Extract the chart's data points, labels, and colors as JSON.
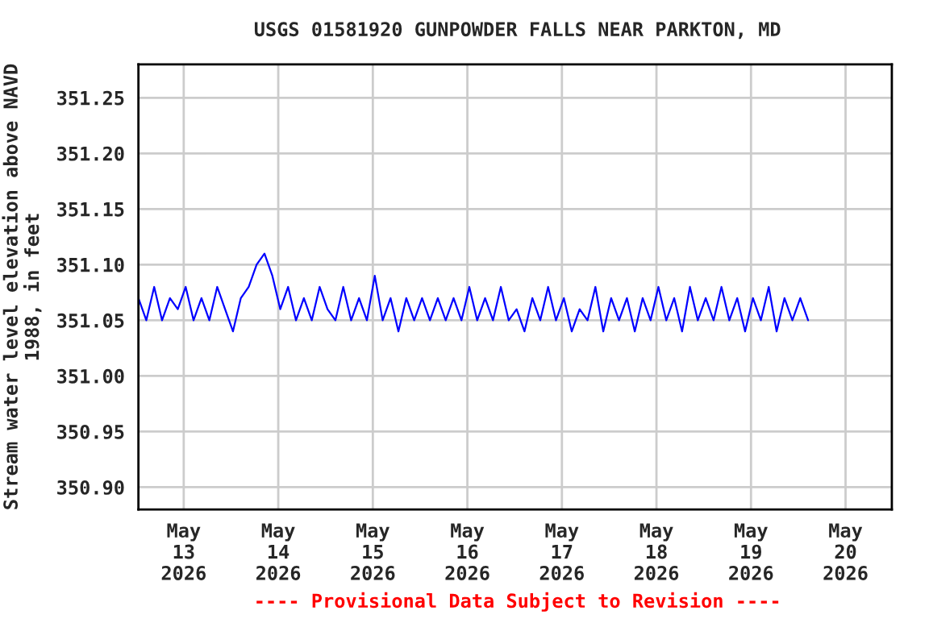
{
  "chart_data": {
    "type": "line",
    "title": "USGS 01581920 GUNPOWDER FALLS NEAR PARKTON, MD",
    "ylabel": "Stream water level elevation above NAVD\n1988, in feet",
    "annotations": [
      "---- Provisional Data Subject to Revision ----"
    ],
    "x": [
      "2026-05-12T12:30",
      "2026-05-12T14:30",
      "2026-05-12T16:30",
      "2026-05-12T18:30",
      "2026-05-12T20:30",
      "2026-05-12T22:30",
      "2026-05-13T00:30",
      "2026-05-13T02:30",
      "2026-05-13T04:30",
      "2026-05-13T06:30",
      "2026-05-13T08:30",
      "2026-05-13T10:30",
      "2026-05-13T12:30",
      "2026-05-13T14:30",
      "2026-05-13T16:30",
      "2026-05-13T18:30",
      "2026-05-13T20:30",
      "2026-05-13T22:30",
      "2026-05-14T00:30",
      "2026-05-14T02:30",
      "2026-05-14T04:30",
      "2026-05-14T06:30",
      "2026-05-14T08:30",
      "2026-05-14T10:30",
      "2026-05-14T12:30",
      "2026-05-14T14:30",
      "2026-05-14T16:30",
      "2026-05-14T18:30",
      "2026-05-14T20:30",
      "2026-05-14T22:30",
      "2026-05-15T00:30",
      "2026-05-15T02:30",
      "2026-05-15T04:30",
      "2026-05-15T06:30",
      "2026-05-15T08:30",
      "2026-05-15T10:30",
      "2026-05-15T12:30",
      "2026-05-15T14:30",
      "2026-05-15T16:30",
      "2026-05-15T18:30",
      "2026-05-15T20:30",
      "2026-05-15T22:30",
      "2026-05-16T00:30",
      "2026-05-16T02:30",
      "2026-05-16T04:30",
      "2026-05-16T06:30",
      "2026-05-16T08:30",
      "2026-05-16T10:30",
      "2026-05-16T12:30",
      "2026-05-16T14:30",
      "2026-05-16T16:30",
      "2026-05-16T18:30",
      "2026-05-16T20:30",
      "2026-05-16T22:30",
      "2026-05-17T00:30",
      "2026-05-17T02:30",
      "2026-05-17T04:30",
      "2026-05-17T06:30",
      "2026-05-17T08:30",
      "2026-05-17T10:30",
      "2026-05-17T12:30",
      "2026-05-17T14:30",
      "2026-05-17T16:30",
      "2026-05-17T18:30",
      "2026-05-17T20:30",
      "2026-05-17T22:30",
      "2026-05-18T00:30",
      "2026-05-18T02:30",
      "2026-05-18T04:30",
      "2026-05-18T06:30",
      "2026-05-18T08:30",
      "2026-05-18T10:30",
      "2026-05-18T12:30",
      "2026-05-18T14:30",
      "2026-05-18T16:30",
      "2026-05-18T18:30",
      "2026-05-18T20:30",
      "2026-05-18T22:30",
      "2026-05-19T00:30",
      "2026-05-19T02:30",
      "2026-05-19T04:30",
      "2026-05-19T06:30",
      "2026-05-19T08:30",
      "2026-05-19T10:30",
      "2026-05-19T12:30",
      "2026-05-19T14:30"
    ],
    "series": [
      {
        "color": "#0000ff",
        "values": [
          351.07,
          351.05,
          351.08,
          351.05,
          351.07,
          351.06,
          351.08,
          351.05,
          351.07,
          351.05,
          351.08,
          351.06,
          351.04,
          351.07,
          351.08,
          351.1,
          351.11,
          351.09,
          351.06,
          351.08,
          351.05,
          351.07,
          351.05,
          351.08,
          351.06,
          351.05,
          351.08,
          351.05,
          351.07,
          351.05,
          351.09,
          351.05,
          351.07,
          351.04,
          351.07,
          351.05,
          351.07,
          351.05,
          351.07,
          351.05,
          351.07,
          351.05,
          351.08,
          351.05,
          351.07,
          351.05,
          351.08,
          351.05,
          351.06,
          351.04,
          351.07,
          351.05,
          351.08,
          351.05,
          351.07,
          351.04,
          351.06,
          351.05,
          351.08,
          351.04,
          351.07,
          351.05,
          351.07,
          351.04,
          351.07,
          351.05,
          351.08,
          351.05,
          351.07,
          351.04,
          351.08,
          351.05,
          351.07,
          351.05,
          351.08,
          351.05,
          351.07,
          351.04,
          351.07,
          351.05,
          351.08,
          351.04,
          351.07,
          351.05,
          351.07,
          351.05
        ]
      }
    ],
    "xlim": [
      "2026-05-12T12:30",
      "2026-05-20T11:45"
    ],
    "xticks": [
      {
        "value": "2026-05-13",
        "label": "May\n13\n2026"
      },
      {
        "value": "2026-05-14",
        "label": "May\n14\n2026"
      },
      {
        "value": "2026-05-15",
        "label": "May\n15\n2026"
      },
      {
        "value": "2026-05-16",
        "label": "May\n16\n2026"
      },
      {
        "value": "2026-05-17",
        "label": "May\n17\n2026"
      },
      {
        "value": "2026-05-18",
        "label": "May\n18\n2026"
      },
      {
        "value": "2026-05-19",
        "label": "May\n19\n2026"
      },
      {
        "value": "2026-05-20",
        "label": "May\n20\n2026"
      }
    ],
    "ylim": [
      350.88,
      351.28
    ],
    "yticks": [
      {
        "value": 350.9,
        "label": "350.90"
      },
      {
        "value": 350.95,
        "label": "350.95"
      },
      {
        "value": 351.0,
        "label": "351.00"
      },
      {
        "value": 351.05,
        "label": "351.05"
      },
      {
        "value": 351.1,
        "label": "351.10"
      },
      {
        "value": 351.15,
        "label": "351.15"
      },
      {
        "value": 351.2,
        "label": "351.20"
      },
      {
        "value": 351.25,
        "label": "351.25"
      }
    ],
    "grid": true,
    "line_style": "solid",
    "marker": "none"
  }
}
